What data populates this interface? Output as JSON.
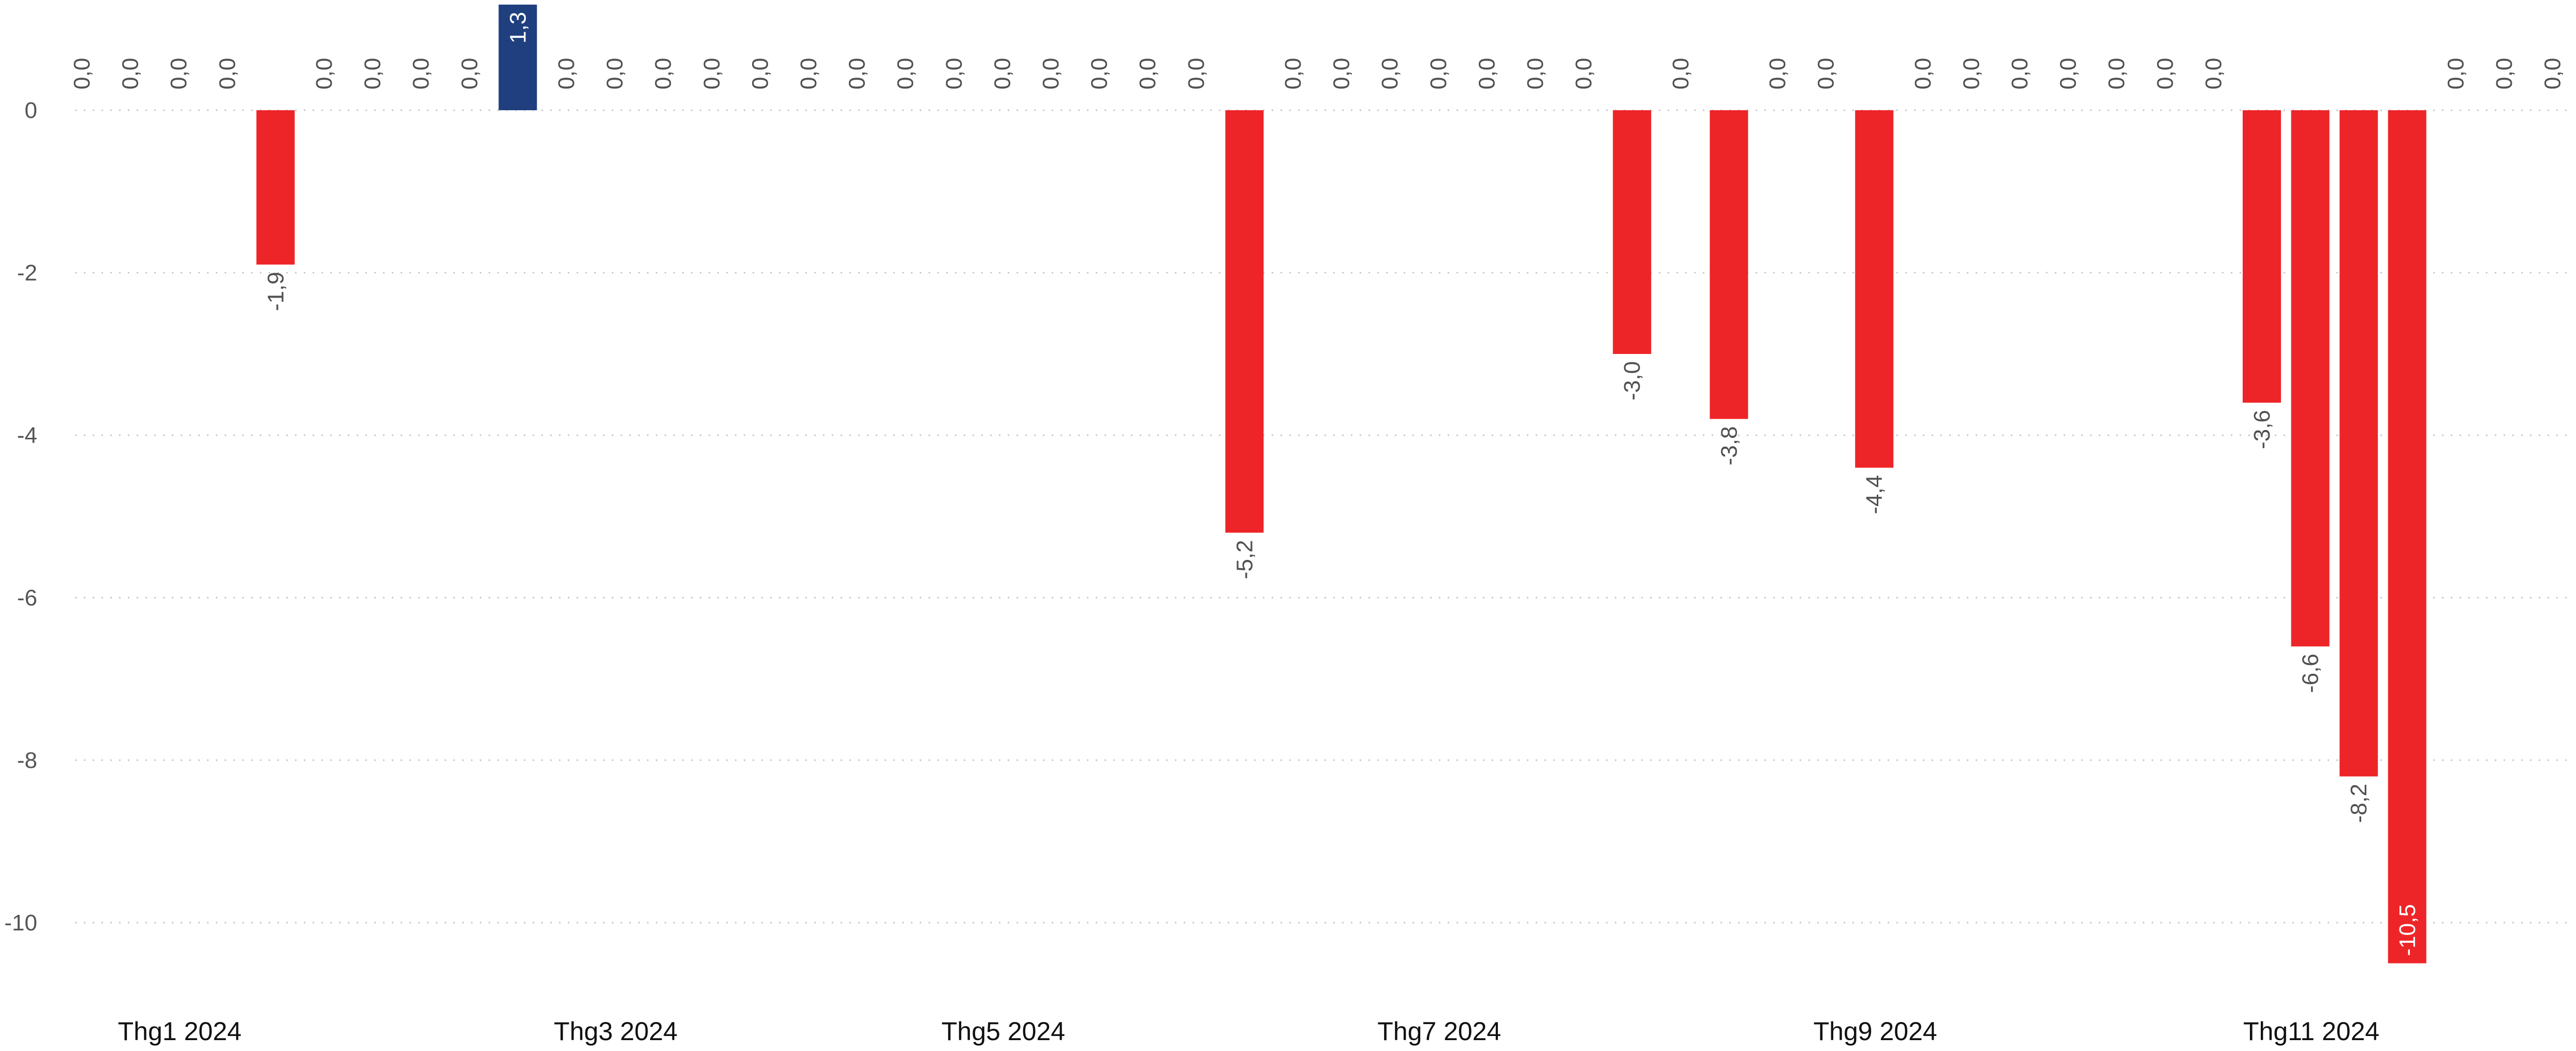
{
  "chart_data": {
    "type": "bar",
    "grid": "horizontal-dotted",
    "ylim": [
      -10.7,
      1.3
    ],
    "yticks": [
      {
        "value": 0,
        "label": "0"
      },
      {
        "value": -2,
        "label": "-2"
      },
      {
        "value": -4,
        "label": "-4"
      },
      {
        "value": -6,
        "label": "-6"
      },
      {
        "value": -8,
        "label": "-8"
      },
      {
        "value": -10,
        "label": "-10"
      }
    ],
    "xticks": [
      "Thg1 2024",
      "Thg3 2024",
      "Thg5 2024",
      "Thg7 2024",
      "Thg9 2024",
      "Thg11 2024"
    ],
    "xtick_slots": [
      2,
      11,
      19,
      28,
      37,
      46
    ],
    "values": [
      0.0,
      0.0,
      0.0,
      0.0,
      -1.9,
      0.0,
      0.0,
      0.0,
      0.0,
      1.3,
      0.0,
      0.0,
      0.0,
      0.0,
      0.0,
      0.0,
      0.0,
      0.0,
      0.0,
      0.0,
      0.0,
      0.0,
      0.0,
      0.0,
      -5.2,
      0.0,
      0.0,
      0.0,
      0.0,
      0.0,
      0.0,
      0.0,
      -3.0,
      0.0,
      -3.8,
      0.0,
      0.0,
      -4.4,
      0.0,
      0.0,
      0.0,
      0.0,
      0.0,
      0.0,
      0.0,
      -3.6,
      -6.6,
      -8.2,
      -10.5,
      0.0,
      0.0,
      0.0
    ],
    "labels": [
      "0,0",
      "0,0",
      "0,0",
      "0,0",
      "-1,9",
      "0,0",
      "0,0",
      "0,0",
      "0,0",
      "1,3",
      "0,0",
      "0,0",
      "0,0",
      "0,0",
      "0,0",
      "0,0",
      "0,0",
      "0,0",
      "0,0",
      "0,0",
      "0,0",
      "0,0",
      "0,0",
      "0,0",
      "-5,2",
      "0,0",
      "0,0",
      "0,0",
      "0,0",
      "0,0",
      "0,0",
      "0,0",
      "-3,0",
      "0,0",
      "-3,8",
      "0,0",
      "0,0",
      "-4,4",
      "0,0",
      "0,0",
      "0,0",
      "0,0",
      "0,0",
      "0,0",
      "0,0",
      "-3,6",
      "-6,6",
      "-8,2",
      "-10,5",
      "0,0",
      "0,0",
      "0,0"
    ],
    "colors": {
      "positive": "#1f3f7f",
      "negative": "#ee2528",
      "grid": "#c8c8c8",
      "label": "#505050",
      "label_inside": "#ffffff"
    }
  }
}
